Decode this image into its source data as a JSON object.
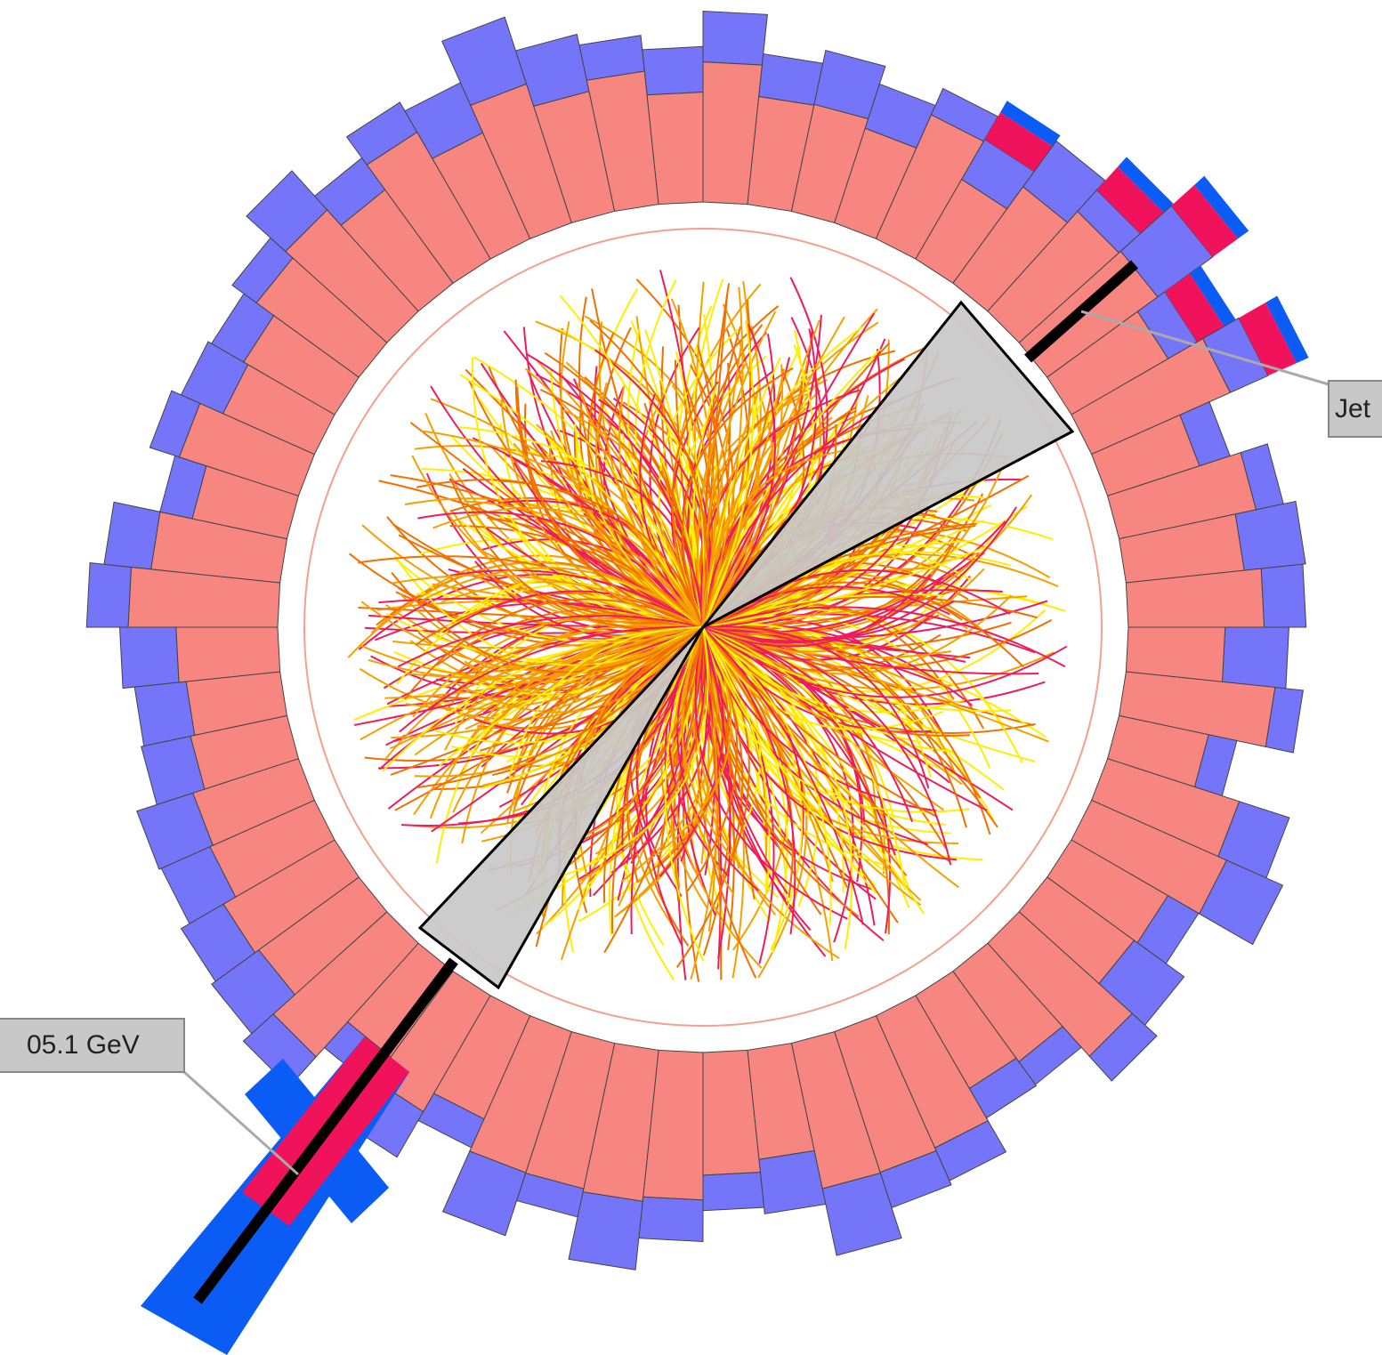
{
  "labels": {
    "jet": "Jet",
    "energy": "05.1 GeV"
  }
}
